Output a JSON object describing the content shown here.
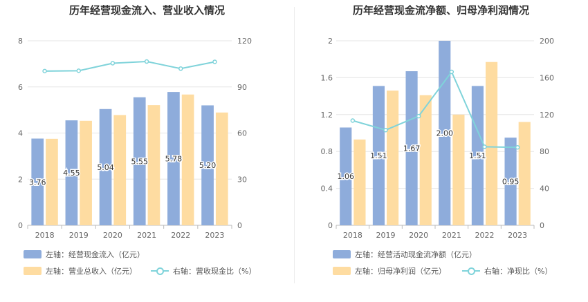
{
  "colors": {
    "bar1": "#8eacdb",
    "bar2": "#fedca1",
    "line": "#7fd3da",
    "grid": "#e6e6e6"
  },
  "chart_data": [
    {
      "type": "bar",
      "title": "历年经营现金流入、营业收入情况",
      "categories": [
        "2018",
        "2019",
        "2020",
        "2021",
        "2022",
        "2023"
      ],
      "left_axis": {
        "ylim": [
          0,
          8
        ],
        "ticks": [
          "0",
          "2",
          "4",
          "6",
          "8"
        ]
      },
      "right_axis": {
        "ylim": [
          0,
          120
        ],
        "ticks": [
          "0",
          "30",
          "60",
          "90",
          "120"
        ]
      },
      "series": [
        {
          "name": "左轴：经营现金流入（亿元）",
          "axis": "left",
          "type": "bar",
          "values": [
            3.76,
            4.55,
            5.04,
            5.55,
            5.78,
            5.2
          ],
          "labels": [
            "3.76",
            "4.55",
            "5.04",
            "5.55",
            "5.78",
            "5.20"
          ]
        },
        {
          "name": "左轴：营业总收入（亿元）",
          "axis": "left",
          "type": "bar",
          "values": [
            3.75,
            4.53,
            4.78,
            5.21,
            5.67,
            4.89
          ]
        },
        {
          "name": "右轴：营收现金比（%）",
          "axis": "right",
          "type": "line",
          "values": [
            100.3,
            100.5,
            105.4,
            106.5,
            101.9,
            106.3
          ]
        }
      ]
    },
    {
      "type": "bar",
      "title": "历年经营现金流净额、归母净利润情况",
      "categories": [
        "2018",
        "2019",
        "2020",
        "2021",
        "2022",
        "2023"
      ],
      "left_axis": {
        "ylim": [
          0,
          2
        ],
        "ticks": [
          "0",
          "0.4",
          "0.8",
          "1.2",
          "1.6",
          "2"
        ]
      },
      "right_axis": {
        "ylim": [
          0,
          200
        ],
        "ticks": [
          "0",
          "40",
          "80",
          "120",
          "160",
          "200"
        ]
      },
      "series": [
        {
          "name": "左轴：经营活动现金流净额（亿元）",
          "axis": "left",
          "type": "bar",
          "values": [
            1.06,
            1.51,
            1.67,
            2.0,
            1.51,
            0.95
          ],
          "labels": [
            "1.06",
            "1.51",
            "1.67",
            "2.00",
            "1.51",
            "0.95"
          ]
        },
        {
          "name": "左轴：归母净利润（亿元）",
          "axis": "left",
          "type": "bar",
          "values": [
            0.93,
            1.46,
            1.41,
            1.2,
            1.77,
            1.12
          ]
        },
        {
          "name": "右轴：净现比（%）",
          "axis": "right",
          "type": "line",
          "values": [
            113.5,
            103.2,
            118.3,
            166.3,
            85.1,
            84.5
          ]
        }
      ]
    }
  ]
}
